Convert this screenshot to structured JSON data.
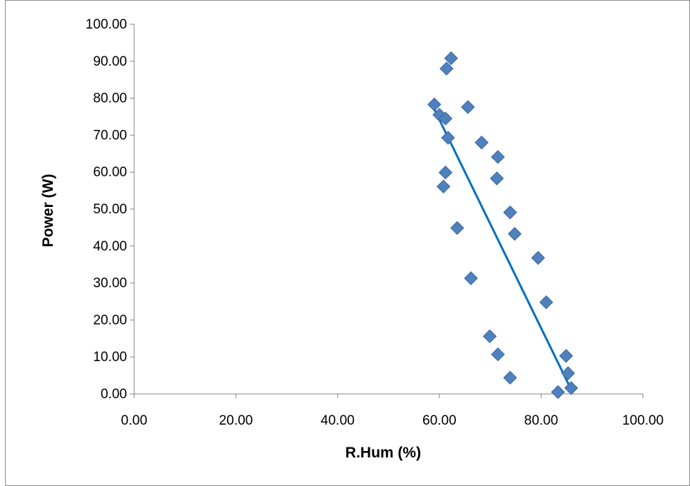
{
  "chart_data": {
    "type": "scatter",
    "title": "",
    "xlabel": "R.Hum (%)",
    "ylabel": "Power (W)",
    "xlim": [
      0,
      100
    ],
    "ylim": [
      0,
      100
    ],
    "x_ticks": [
      "0.00",
      "20.00",
      "40.00",
      "60.00",
      "80.00",
      "100.00"
    ],
    "y_ticks": [
      "0.00",
      "10.00",
      "20.00",
      "30.00",
      "40.00",
      "50.00",
      "60.00",
      "70.00",
      "80.00",
      "90.00",
      "100.00"
    ],
    "grid": false,
    "legend": "none",
    "marker": "diamond",
    "marker_color": "#4F81BD",
    "trendline_color": "#0070C0",
    "series": [
      {
        "points": [
          [
            62.3,
            90.8
          ],
          [
            61.4,
            88.0
          ],
          [
            59.0,
            78.3
          ],
          [
            65.6,
            77.6
          ],
          [
            60.0,
            75.5
          ],
          [
            61.2,
            74.5
          ],
          [
            61.7,
            69.3
          ],
          [
            68.3,
            68.0
          ],
          [
            71.5,
            64.1
          ],
          [
            61.2,
            59.9
          ],
          [
            71.3,
            58.3
          ],
          [
            60.8,
            56.1
          ],
          [
            73.9,
            49.1
          ],
          [
            74.8,
            43.3
          ],
          [
            63.5,
            44.9
          ],
          [
            79.4,
            36.8
          ],
          [
            66.2,
            31.3
          ],
          [
            81.0,
            24.8
          ],
          [
            69.9,
            15.6
          ],
          [
            71.5,
            10.7
          ],
          [
            84.9,
            10.3
          ],
          [
            85.3,
            5.6
          ],
          [
            73.9,
            4.4
          ],
          [
            85.9,
            1.6
          ],
          [
            83.3,
            0.5
          ]
        ],
        "trendline": {
          "type": "linear",
          "from": [
            59.0,
            77.0
          ],
          "to": [
            85.6,
            2.0
          ]
        }
      }
    ]
  }
}
